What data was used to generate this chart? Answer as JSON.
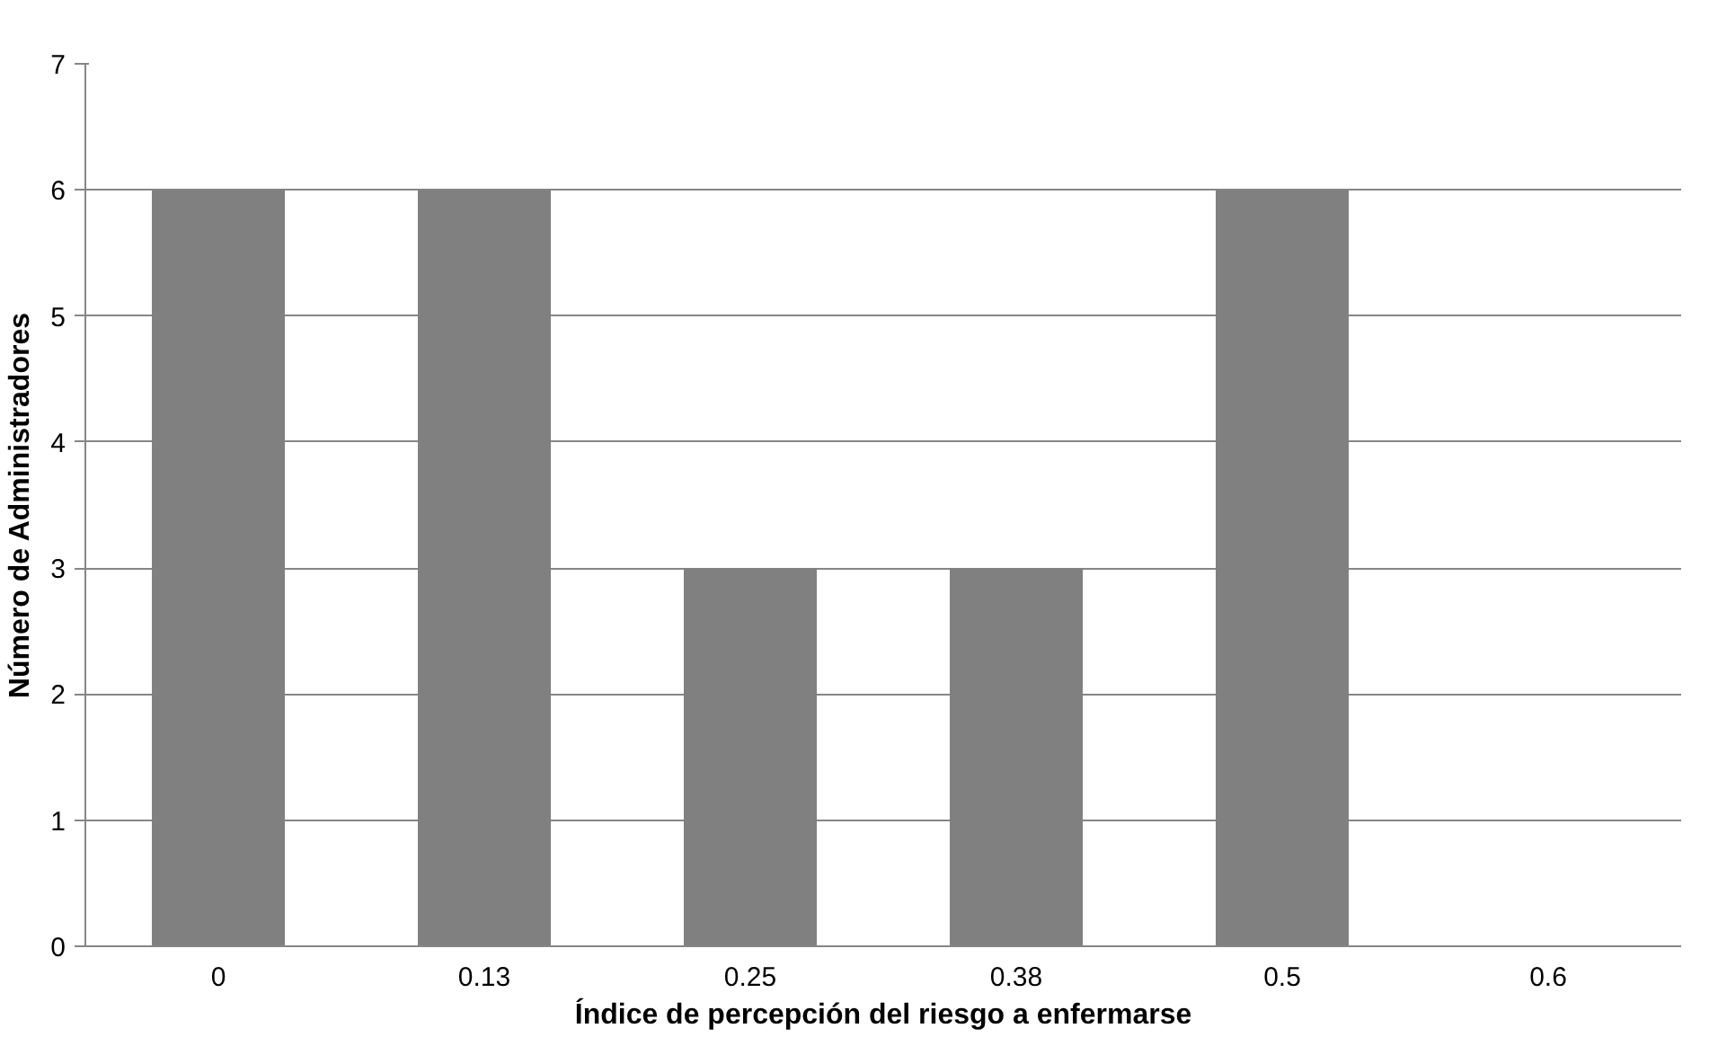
{
  "chart_data": {
    "type": "bar",
    "xlabel": "Índice de percepción del riesgo a enfermarse",
    "ylabel": "Número de Administradores",
    "categories": [
      "0",
      "0.13",
      "0.25",
      "0.38",
      "0.5",
      "0.6"
    ],
    "values": [
      6,
      6,
      3,
      3,
      6,
      0
    ],
    "color": "#808080",
    "ylim": [
      0,
      7
    ],
    "yticks": [
      0,
      1,
      2,
      3,
      4,
      5,
      6,
      7
    ],
    "grid": "y"
  }
}
